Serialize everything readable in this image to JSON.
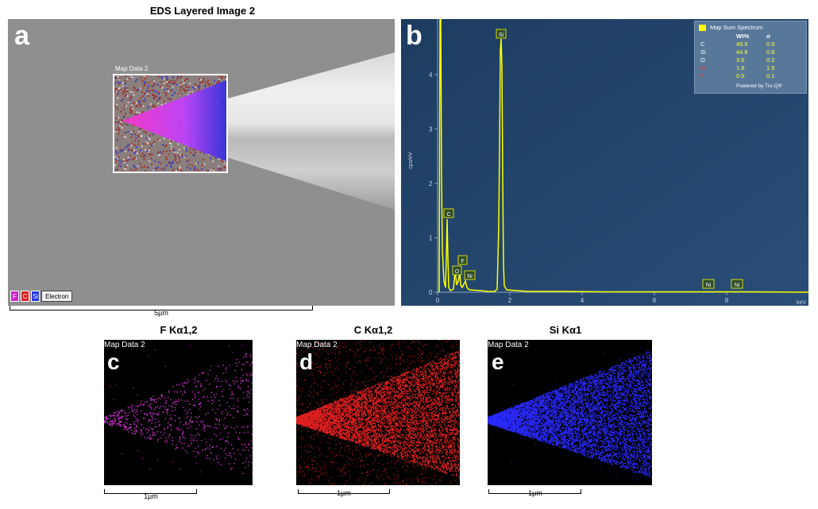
{
  "panel_a": {
    "title": "EDS Layered Image 2",
    "letter": "a",
    "map_label": "Map Data 2",
    "legend_chips": [
      {
        "label": "F",
        "color": "#cc22cc"
      },
      {
        "label": "C",
        "color": "#dd2222"
      },
      {
        "label": "Si",
        "color": "#2233dd"
      }
    ],
    "legend_electron": "Electron",
    "scale_label": "5µm"
  },
  "panel_b": {
    "letter": "b",
    "ylabel": "cps/eV",
    "xunit": "keV",
    "x_ticks": [
      "0",
      "2",
      "4",
      "6",
      "8"
    ],
    "y_ticks": [
      "0",
      "1",
      "2",
      "3",
      "4"
    ],
    "peak_labels": [
      "Si",
      "C",
      "F",
      "O",
      "Ni",
      "Ni",
      "Ni"
    ],
    "legend": {
      "title": "Map Sum Spectrum",
      "col_wt": "Wt%",
      "col_sigma": "σ",
      "rows": [
        {
          "el": "C",
          "wt": "49.5",
          "sigma": "0.9",
          "color": "#ffffff"
        },
        {
          "el": "Si",
          "wt": "44.6",
          "sigma": "0.8",
          "color": "#ffffff"
        },
        {
          "el": "O",
          "wt": "3.6",
          "sigma": "0.2",
          "color": "#ffffff"
        },
        {
          "el": "Ni",
          "wt": "1.9",
          "sigma": "1.5",
          "color": "#ff3333"
        },
        {
          "el": "F",
          "wt": "0.5",
          "sigma": "0.1",
          "color": "#ff3333"
        }
      ],
      "footer": "Powered by Tru-Q®"
    },
    "accent_color": "#ffff00"
  },
  "maps": [
    {
      "title": "F Kα1,2",
      "letter": "c",
      "label": "Map Data 2",
      "scale": "1µm",
      "color": "#cc33cc"
    },
    {
      "title": "C Kα1,2",
      "letter": "d",
      "label": "Map Data 2",
      "scale": "1µm",
      "color": "#e02020"
    },
    {
      "title": "Si Kα1",
      "letter": "e",
      "label": "Map Data 2",
      "scale": "1µm",
      "color": "#2a2aff"
    }
  ]
}
